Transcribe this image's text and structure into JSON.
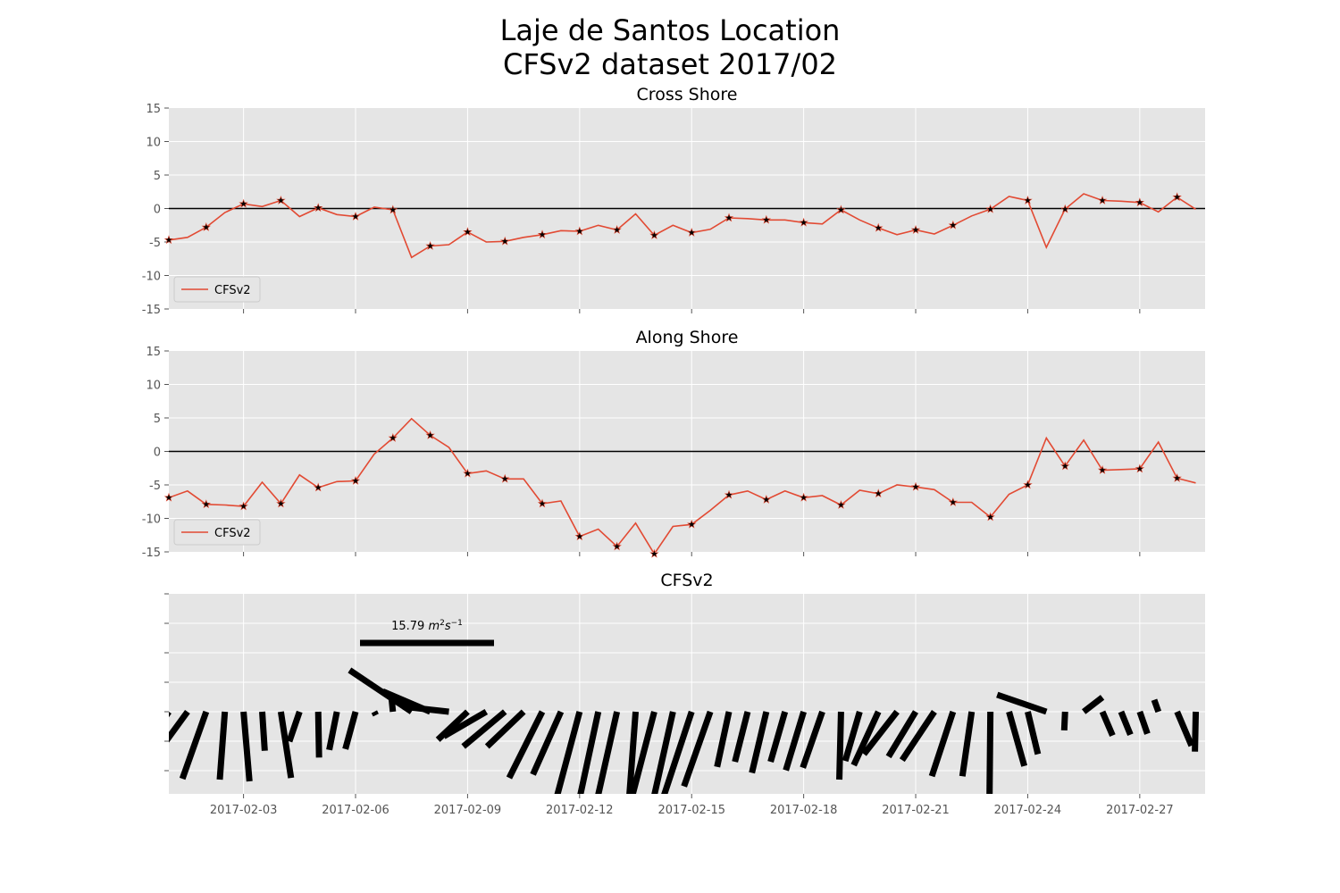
{
  "figure": {
    "title_line1": "Laje de Santos Location",
    "title_line2": "CFSv2 dataset 2017/02"
  },
  "chart_data": [
    {
      "type": "line",
      "title": "Cross Shore",
      "xlabel": "",
      "ylabel": "",
      "ylim": [
        -15,
        15
      ],
      "yticks": [
        -15,
        -10,
        -5,
        0,
        5,
        10,
        15
      ],
      "xlim": [
        "2017-02-01",
        "2017-02-28 18:00"
      ],
      "grid": true,
      "reference_line": 0,
      "legend": {
        "placement": "lower-left",
        "entries": [
          "CFSv2"
        ]
      },
      "markers": "star at 00:00 of each day",
      "series": [
        {
          "name": "CFSv2",
          "color": "#e24a33",
          "x": [
            "2017-02-01 00:00",
            "2017-02-01 12:00",
            "2017-02-02 00:00",
            "2017-02-02 12:00",
            "2017-02-03 00:00",
            "2017-02-03 12:00",
            "2017-02-04 00:00",
            "2017-02-04 12:00",
            "2017-02-05 00:00",
            "2017-02-05 12:00",
            "2017-02-06 00:00",
            "2017-02-06 12:00",
            "2017-02-07 00:00",
            "2017-02-07 12:00",
            "2017-02-08 00:00",
            "2017-02-08 12:00",
            "2017-02-09 00:00",
            "2017-02-09 12:00",
            "2017-02-10 00:00",
            "2017-02-10 12:00",
            "2017-02-11 00:00",
            "2017-02-11 12:00",
            "2017-02-12 00:00",
            "2017-02-12 12:00",
            "2017-02-13 00:00",
            "2017-02-13 12:00",
            "2017-02-14 00:00",
            "2017-02-14 12:00",
            "2017-02-15 00:00",
            "2017-02-15 12:00",
            "2017-02-16 00:00",
            "2017-02-16 12:00",
            "2017-02-17 00:00",
            "2017-02-17 12:00",
            "2017-02-18 00:00",
            "2017-02-18 12:00",
            "2017-02-19 00:00",
            "2017-02-19 12:00",
            "2017-02-20 00:00",
            "2017-02-20 12:00",
            "2017-02-21 00:00",
            "2017-02-21 12:00",
            "2017-02-22 00:00",
            "2017-02-22 12:00",
            "2017-02-23 00:00",
            "2017-02-23 12:00",
            "2017-02-24 00:00",
            "2017-02-24 12:00",
            "2017-02-25 00:00",
            "2017-02-25 12:00",
            "2017-02-26 00:00",
            "2017-02-26 12:00",
            "2017-02-27 00:00",
            "2017-02-27 12:00",
            "2017-02-28 00:00",
            "2017-02-28 12:00"
          ],
          "values": [
            -4.7,
            -4.3,
            -2.8,
            -0.6,
            0.7,
            0.3,
            1.2,
            -1.2,
            0.1,
            -0.9,
            -1.2,
            0.2,
            -0.2,
            -7.3,
            -5.6,
            -5.4,
            -3.5,
            -5.0,
            -4.9,
            -4.3,
            -3.9,
            -3.3,
            -3.4,
            -2.5,
            -3.2,
            -0.8,
            -4.0,
            -2.5,
            -3.6,
            -3.1,
            -1.4,
            -1.5,
            -1.7,
            -1.7,
            -2.1,
            -2.3,
            -0.2,
            -1.7,
            -2.9,
            -3.9,
            -3.2,
            -3.8,
            -2.5,
            -1.1,
            -0.1,
            1.8,
            1.2,
            -5.8,
            -0.1,
            2.2,
            1.2,
            1.1,
            0.9,
            -0.5,
            1.7,
            -0.1
          ]
        }
      ]
    },
    {
      "type": "line",
      "title": "Along Shore",
      "xlabel": "",
      "ylabel": "",
      "ylim": [
        -15,
        15
      ],
      "yticks": [
        -15,
        -10,
        -5,
        0,
        5,
        10,
        15
      ],
      "xlim": [
        "2017-02-01",
        "2017-02-28 18:00"
      ],
      "grid": true,
      "reference_line": 0,
      "legend": {
        "placement": "lower-left",
        "entries": [
          "CFSv2"
        ]
      },
      "markers": "star at 00:00 of each day",
      "series": [
        {
          "name": "CFSv2",
          "color": "#e24a33",
          "x": [
            "2017-02-01 00:00",
            "2017-02-01 12:00",
            "2017-02-02 00:00",
            "2017-02-02 12:00",
            "2017-02-03 00:00",
            "2017-02-03 12:00",
            "2017-02-04 00:00",
            "2017-02-04 12:00",
            "2017-02-05 00:00",
            "2017-02-05 12:00",
            "2017-02-06 00:00",
            "2017-02-06 12:00",
            "2017-02-07 00:00",
            "2017-02-07 12:00",
            "2017-02-08 00:00",
            "2017-02-08 12:00",
            "2017-02-09 00:00",
            "2017-02-09 12:00",
            "2017-02-10 00:00",
            "2017-02-10 12:00",
            "2017-02-11 00:00",
            "2017-02-11 12:00",
            "2017-02-12 00:00",
            "2017-02-12 12:00",
            "2017-02-13 00:00",
            "2017-02-13 12:00",
            "2017-02-14 00:00",
            "2017-02-14 12:00",
            "2017-02-15 00:00",
            "2017-02-15 12:00",
            "2017-02-16 00:00",
            "2017-02-16 12:00",
            "2017-02-17 00:00",
            "2017-02-17 12:00",
            "2017-02-18 00:00",
            "2017-02-18 12:00",
            "2017-02-19 00:00",
            "2017-02-19 12:00",
            "2017-02-20 00:00",
            "2017-02-20 12:00",
            "2017-02-21 00:00",
            "2017-02-21 12:00",
            "2017-02-22 00:00",
            "2017-02-22 12:00",
            "2017-02-23 00:00",
            "2017-02-23 12:00",
            "2017-02-24 00:00",
            "2017-02-24 12:00",
            "2017-02-25 00:00",
            "2017-02-25 12:00",
            "2017-02-26 00:00",
            "2017-02-26 12:00",
            "2017-02-27 00:00",
            "2017-02-27 12:00",
            "2017-02-28 00:00",
            "2017-02-28 12:00"
          ],
          "values": [
            -6.9,
            -5.9,
            -7.9,
            -8.0,
            -8.2,
            -4.6,
            -7.8,
            -3.5,
            -5.4,
            -4.5,
            -4.4,
            -0.4,
            2.0,
            4.9,
            2.4,
            0.6,
            -3.3,
            -2.9,
            -4.1,
            -4.1,
            -7.8,
            -7.4,
            -12.7,
            -11.6,
            -14.2,
            -10.7,
            -15.3,
            -11.2,
            -10.9,
            -8.8,
            -6.5,
            -5.9,
            -7.2,
            -5.9,
            -6.9,
            -6.6,
            -8.0,
            -5.8,
            -6.3,
            -5.0,
            -5.3,
            -5.7,
            -7.6,
            -7.6,
            -9.8,
            -6.4,
            -5.0,
            2.0,
            -2.2,
            1.7,
            -2.8,
            -2.7,
            -2.6,
            1.4,
            -4.0,
            -4.7
          ]
        }
      ]
    },
    {
      "type": "quiver",
      "title": "CFSv2",
      "xlabel": "",
      "ylabel": "",
      "xlim": [
        "2017-02-01",
        "2017-02-28 18:00"
      ],
      "xticks": [
        "2017-02-03",
        "2017-02-06",
        "2017-02-09",
        "2017-02-12",
        "2017-02-15",
        "2017-02-18",
        "2017-02-21",
        "2017-02-24",
        "2017-02-27"
      ],
      "grid": true,
      "key": {
        "value": 15.79,
        "label": "15.79",
        "unit_math": "m^2 s^-1"
      },
      "description": "stick vectors (u = Cross Shore, v = Along Shore) drawn from a zero baseline at each time step"
    }
  ]
}
